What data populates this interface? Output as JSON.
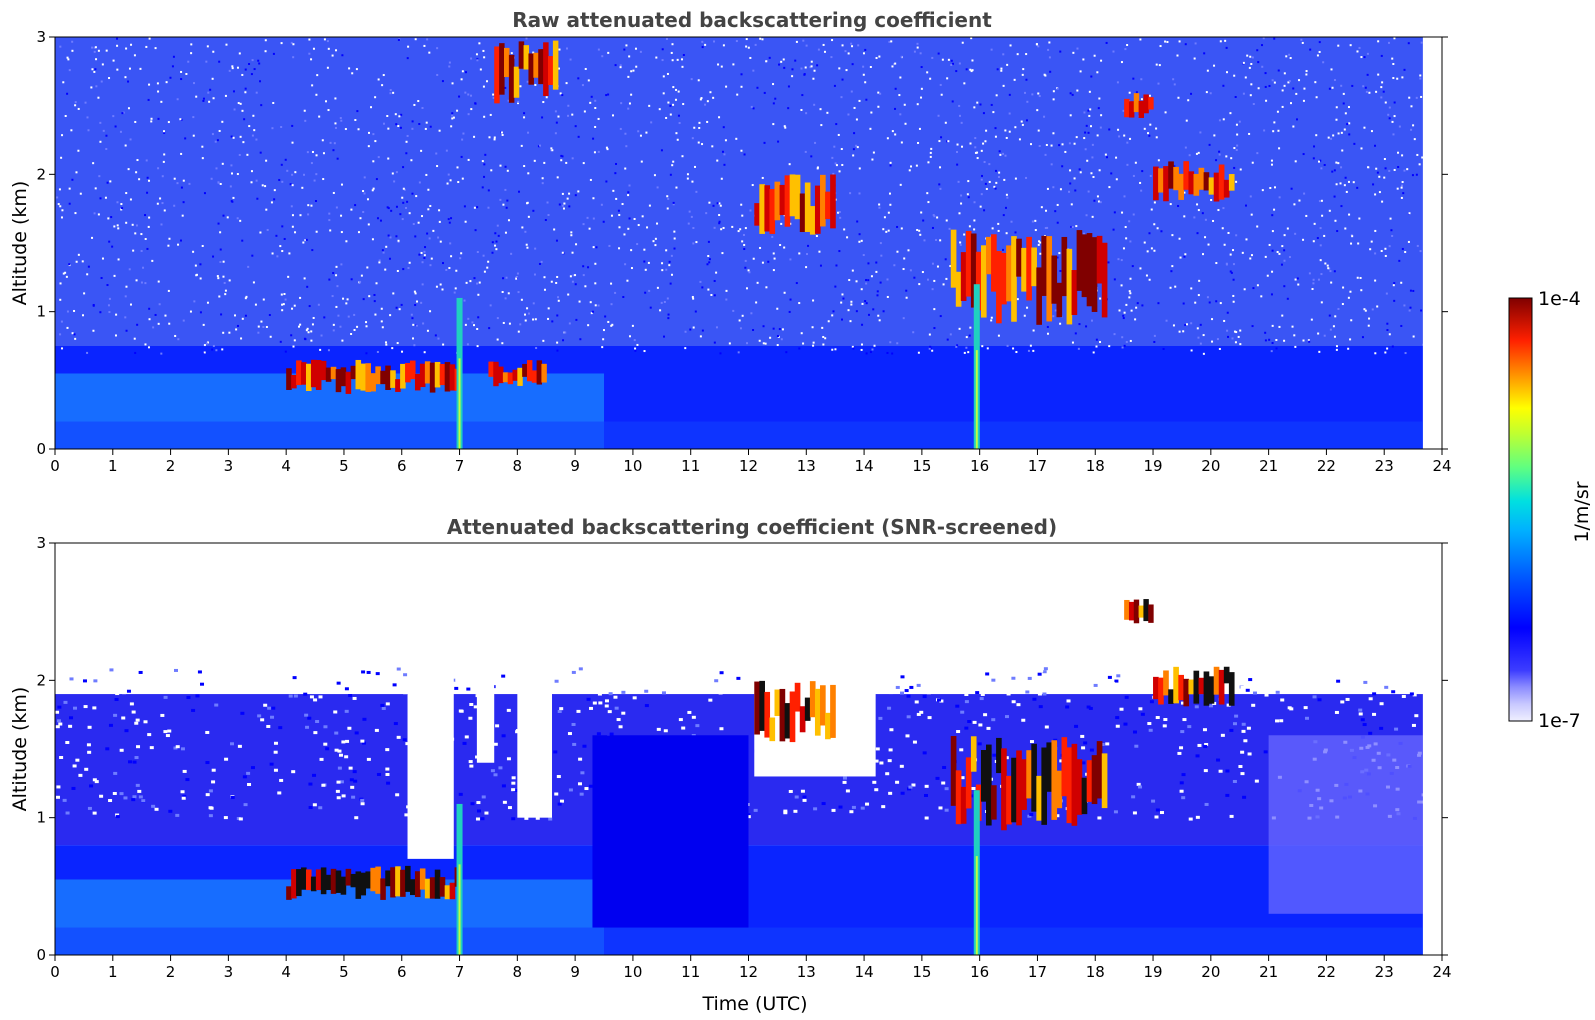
{
  "chart_data": [
    {
      "type": "heatmap",
      "title": "Raw attenuated backscattering coefficient",
      "xlabel": "",
      "ylabel": "Altitude (km)",
      "xlim": [
        0,
        24
      ],
      "ylim": [
        0,
        3
      ],
      "xticks": [
        0,
        1,
        2,
        3,
        4,
        5,
        6,
        7,
        8,
        9,
        10,
        11,
        12,
        13,
        14,
        15,
        16,
        17,
        18,
        19,
        20,
        21,
        22,
        23,
        24
      ],
      "yticks": [
        0,
        1,
        2,
        3
      ],
      "data_extent_hours": 23.67,
      "colormap": "jet",
      "noise_style": "raw speckle above ~0.8 km",
      "boundary_layer_top_km": 0.75,
      "features": [
        {
          "kind": "aerosol layer",
          "t": [
            4.0,
            7.0
          ],
          "z": [
            0.4,
            0.65
          ]
        },
        {
          "kind": "aerosol layer",
          "t": [
            7.5,
            8.5
          ],
          "z": [
            0.45,
            0.65
          ]
        },
        {
          "kind": "cloud",
          "t": [
            7.6,
            8.7
          ],
          "z": [
            2.5,
            3.0
          ]
        },
        {
          "kind": "cloud",
          "t": [
            12.1,
            13.5
          ],
          "z": [
            1.55,
            2.0
          ]
        },
        {
          "kind": "cloud",
          "t": [
            15.5,
            18.2
          ],
          "z": [
            0.9,
            1.6
          ]
        },
        {
          "kind": "cloud",
          "t": [
            18.5,
            19.0
          ],
          "z": [
            2.4,
            2.6
          ]
        },
        {
          "kind": "cloud",
          "t": [
            19.0,
            20.4
          ],
          "z": [
            1.8,
            2.1
          ]
        },
        {
          "kind": "vertical plume",
          "t": 7.0,
          "z": [
            0,
            1.1
          ]
        },
        {
          "kind": "vertical plume",
          "t": 15.95,
          "z": [
            0,
            1.2
          ]
        }
      ]
    },
    {
      "type": "heatmap",
      "title": "Attenuated backscattering coefficient (SNR-screened)",
      "xlabel": "Time (UTC)",
      "ylabel": "Altitude (km)",
      "xlim": [
        0,
        24
      ],
      "ylim": [
        0,
        3
      ],
      "xticks": [
        0,
        1,
        2,
        3,
        4,
        5,
        6,
        7,
        8,
        9,
        10,
        11,
        12,
        13,
        14,
        15,
        16,
        17,
        18,
        19,
        20,
        21,
        22,
        23,
        24
      ],
      "yticks": [
        0,
        1,
        2,
        3
      ],
      "data_extent_hours": 23.67,
      "colormap": "jet",
      "noise_style": "masked (white) where SNR low",
      "screened_top_km": 1.9,
      "features": [
        {
          "kind": "aerosol layer",
          "t": [
            4.0,
            7.0
          ],
          "z": [
            0.4,
            0.65
          ]
        },
        {
          "kind": "cloud",
          "t": [
            12.1,
            13.5
          ],
          "z": [
            1.55,
            2.0
          ]
        },
        {
          "kind": "cloud",
          "t": [
            15.5,
            18.2
          ],
          "z": [
            0.9,
            1.6
          ]
        },
        {
          "kind": "cloud",
          "t": [
            18.5,
            19.0
          ],
          "z": [
            2.4,
            2.6
          ]
        },
        {
          "kind": "cloud",
          "t": [
            19.0,
            20.4
          ],
          "z": [
            1.8,
            2.1
          ]
        },
        {
          "kind": "vertical plume",
          "t": 7.0,
          "z": [
            0,
            1.1
          ]
        },
        {
          "kind": "vertical plume",
          "t": 15.95,
          "z": [
            0,
            1.2
          ]
        }
      ]
    }
  ],
  "colorbar": {
    "max_label": "1e-4",
    "min_label": "1e-7",
    "unit_label": "1/m/sr",
    "colors": [
      "#f0f0ff",
      "#c8c8ff",
      "#8c8cff",
      "#3c3cff",
      "#0000ff",
      "#0040ff",
      "#0080ff",
      "#00c0ff",
      "#00e0e0",
      "#40ff80",
      "#a0ff40",
      "#ffff00",
      "#ffc000",
      "#ff8000",
      "#ff2000",
      "#d00000",
      "#800000"
    ]
  }
}
